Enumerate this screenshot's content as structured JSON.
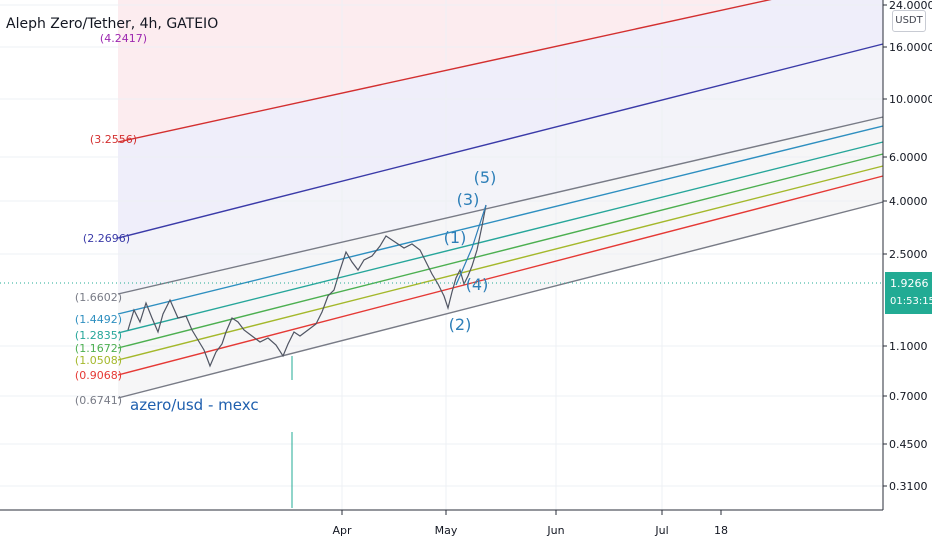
{
  "header": {
    "title": "Aleph Zero/Tether, 4h, GATEIO",
    "unit": "USDT"
  },
  "price_tag": {
    "price": "1.9266",
    "countdown": "01:53:15"
  },
  "chart_data": {
    "type": "line",
    "title": "Aleph Zero/Tether, 4h, GATEIO",
    "yscale": "log",
    "ylim": [
      0.24,
      24
    ],
    "y_ticks": [
      "24.0000",
      "16.0000",
      "10.0000",
      "6.0000",
      "4.0000",
      "2.5000",
      "1.1000",
      "0.7000",
      "0.4500",
      "0.3100"
    ],
    "x_ticks": [
      "Apr",
      "May",
      "Jun",
      "Jul",
      "18"
    ],
    "grid": true,
    "annotation": "azero/usd - mexc",
    "fib_levels": [
      {
        "label": "(4.2417)",
        "color": "#9c27b0"
      },
      {
        "label": "(3.2556)",
        "color": "#d32f2f"
      },
      {
        "label": "(2.2696)",
        "color": "#3a3aa8"
      },
      {
        "label": "(1.6602)",
        "color": "#787b86"
      },
      {
        "label": "(1.4492)",
        "color": "#2e8fc0"
      },
      {
        "label": "(1.2835)",
        "color": "#26a69a"
      },
      {
        "label": "(1.1672)",
        "color": "#4caf50"
      },
      {
        "label": "(1.0508)",
        "color": "#a4b82b"
      },
      {
        "label": "(0.9068)",
        "color": "#e53935"
      },
      {
        "label": "(0.6741)",
        "color": "#787b86"
      }
    ],
    "waves": [
      "(1)",
      "(2)",
      "(3)",
      "(4)",
      "(5)"
    ],
    "last_price": 1.9266
  }
}
